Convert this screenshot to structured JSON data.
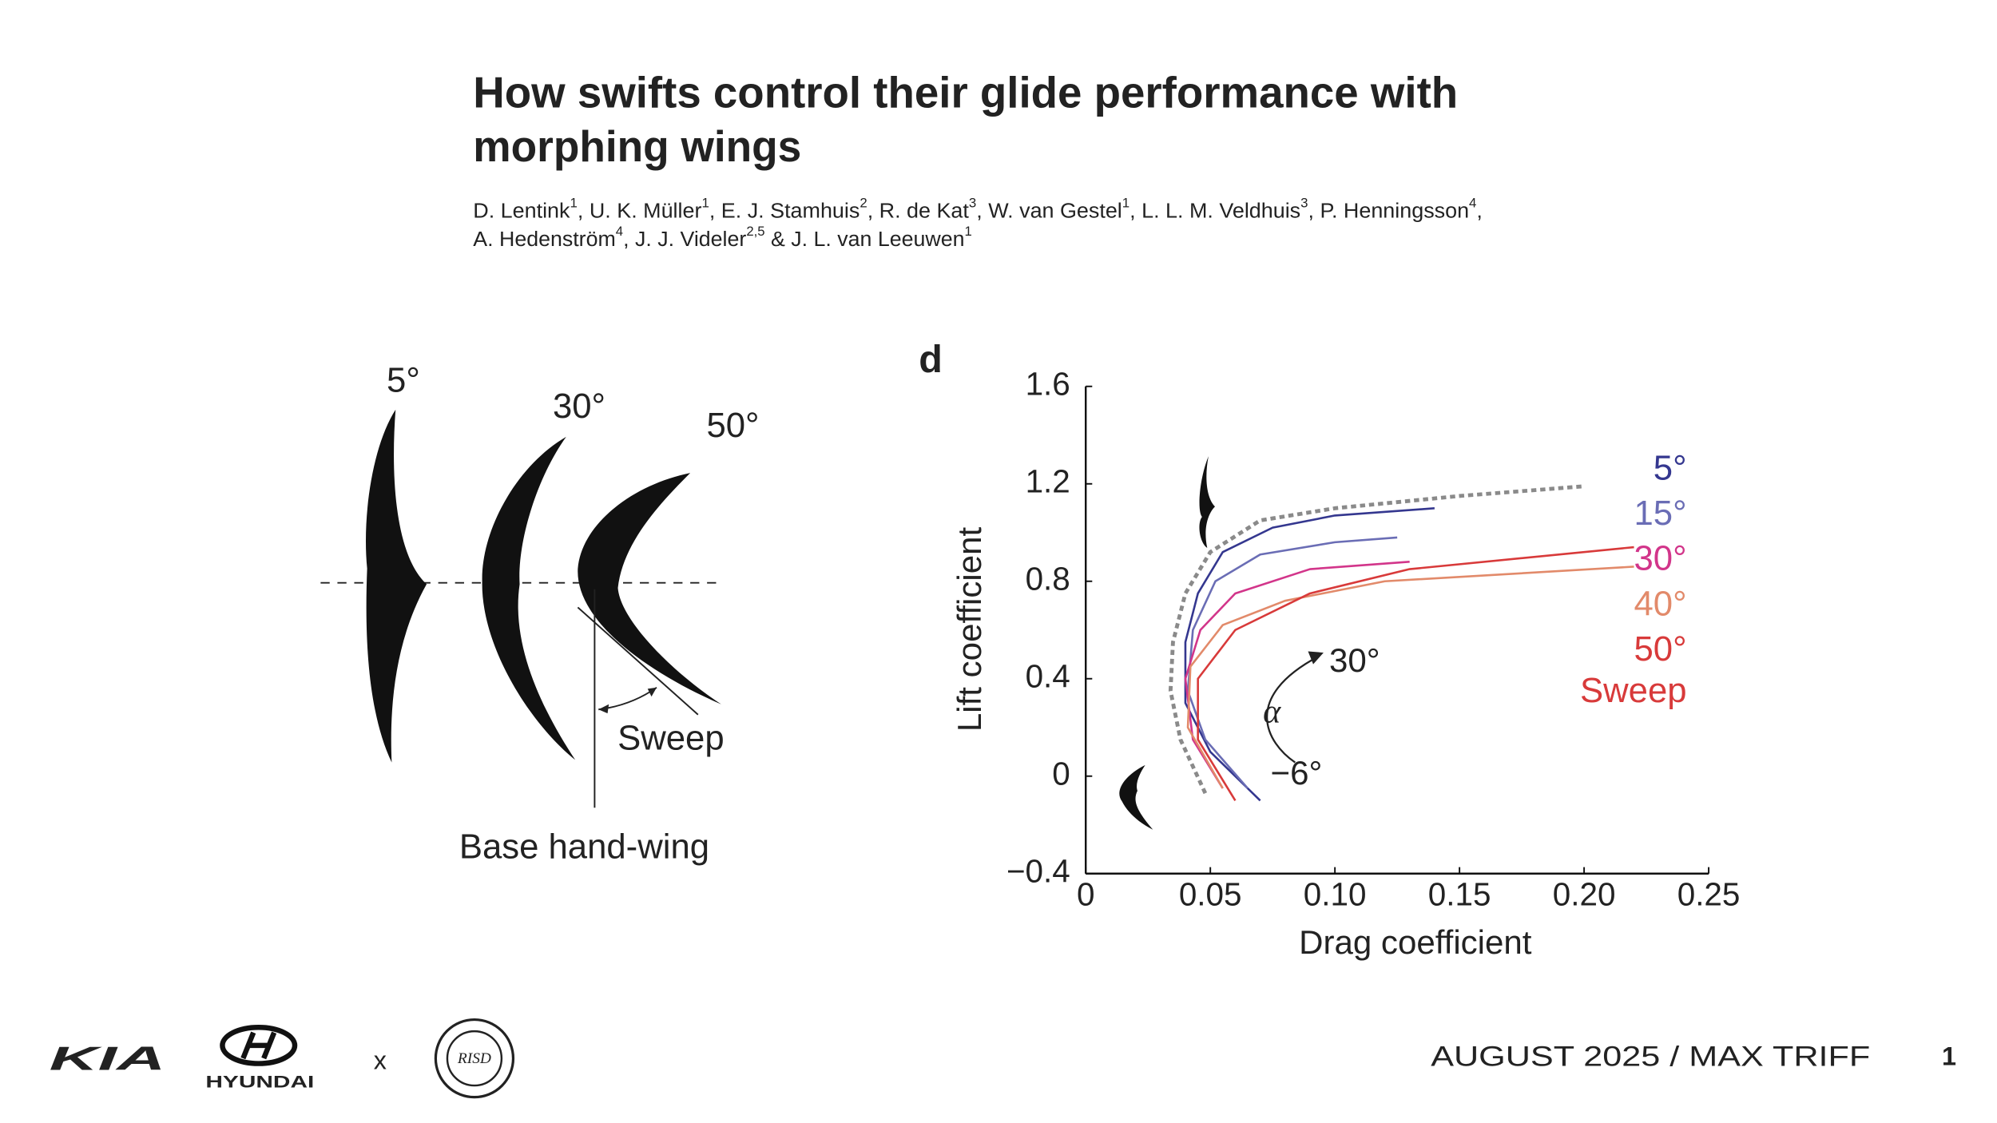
{
  "header": {
    "title_lines": [
      "How swifts control their glide performance with",
      "morphing wings"
    ],
    "author_lines": [
      [
        {
          "name": "D. Lentink",
          "affiliation": "1",
          "sep": ", "
        },
        {
          "name": "U. K. Müller",
          "affiliation": "1",
          "sep": ", "
        },
        {
          "name": "E. J. Stamhuis",
          "affiliation": "2",
          "sep": ", "
        },
        {
          "name": "R. de Kat",
          "affiliation": "3",
          "sep": ", "
        },
        {
          "name": "W. van Gestel",
          "affiliation": "1",
          "sep": ", "
        },
        {
          "name": "L. L. M. Veldhuis",
          "affiliation": "3",
          "sep": ", "
        },
        {
          "name": "P. Henningsson",
          "affiliation": "4",
          "sep": ","
        }
      ],
      [
        {
          "name": "A. Hedenström",
          "affiliation": "4",
          "sep": ", "
        },
        {
          "name": "J. J. Videler",
          "affiliation": "2,5",
          "sep": " & "
        },
        {
          "name": "J. L. van Leeuwen",
          "affiliation": "1"
        }
      ]
    ]
  },
  "wing_figure": {
    "sweep_labels": [
      "5°",
      "30°",
      "50°"
    ],
    "sweep_label": "Sweep",
    "base_label": "Base hand-wing"
  },
  "chart_data": {
    "type": "line",
    "panel_label": "d",
    "xlabel": "Drag coefficient",
    "ylabel": "Lift coefficient",
    "xlim": [
      0,
      0.25
    ],
    "ylim": [
      -0.4,
      1.6
    ],
    "xticks": [
      0,
      0.05,
      {
        "value": 0.1,
        "label": "0.10"
      },
      0.15,
      {
        "value": 0.2,
        "label": "0.20"
      },
      0.25
    ],
    "yticks": [
      {
        "value": -0.4,
        "label": "−0.4"
      },
      0,
      0.4,
      0.8,
      1.2,
      1.6
    ],
    "legend_title": "Sweep",
    "annotations": [
      "30°",
      "α",
      "−6°"
    ],
    "series": [
      {
        "color": "#8a8a8a",
        "dashed": true,
        "x": [
          0.048,
          0.038,
          0.034,
          0.035,
          0.04,
          0.05,
          0.07,
          0.1,
          0.15,
          0.2
        ],
        "values": [
          -0.07,
          0.15,
          0.35,
          0.55,
          0.75,
          0.92,
          1.05,
          1.1,
          1.15,
          1.19
        ]
      },
      {
        "name": "5°",
        "color": "#34378f",
        "x": [
          0.07,
          0.05,
          0.04,
          0.04,
          0.045,
          0.055,
          0.075,
          0.1,
          0.14
        ],
        "values": [
          -0.1,
          0.1,
          0.3,
          0.55,
          0.75,
          0.92,
          1.02,
          1.07,
          1.1
        ]
      },
      {
        "name": "15°",
        "color": "#6a6db5",
        "x": [
          0.065,
          0.048,
          0.041,
          0.043,
          0.052,
          0.07,
          0.1,
          0.125
        ],
        "values": [
          -0.05,
          0.15,
          0.35,
          0.6,
          0.8,
          0.91,
          0.96,
          0.98
        ]
      },
      {
        "name": "30°",
        "color": "#d2358a",
        "x": [
          0.055,
          0.043,
          0.04,
          0.046,
          0.06,
          0.09,
          0.13
        ],
        "values": [
          -0.05,
          0.15,
          0.4,
          0.6,
          0.75,
          0.85,
          0.88
        ]
      },
      {
        "name": "40°",
        "color": "#e28a6a",
        "x": [
          0.055,
          0.041,
          0.042,
          0.055,
          0.08,
          0.12,
          0.22
        ],
        "values": [
          -0.05,
          0.2,
          0.45,
          0.62,
          0.72,
          0.8,
          0.86
        ]
      },
      {
        "name": "50°",
        "color": "#d83a3a",
        "x": [
          0.06,
          0.045,
          0.045,
          0.06,
          0.09,
          0.13,
          0.22
        ],
        "values": [
          -0.1,
          0.15,
          0.4,
          0.6,
          0.75,
          0.85,
          0.94
        ]
      }
    ]
  },
  "footer": {
    "kia": "KIA",
    "hyundai": "HYUNDAI",
    "separator": "x",
    "risd": "RISD",
    "date_author": "AUGUST 2025 / MAX TRIFF",
    "page": "1"
  }
}
